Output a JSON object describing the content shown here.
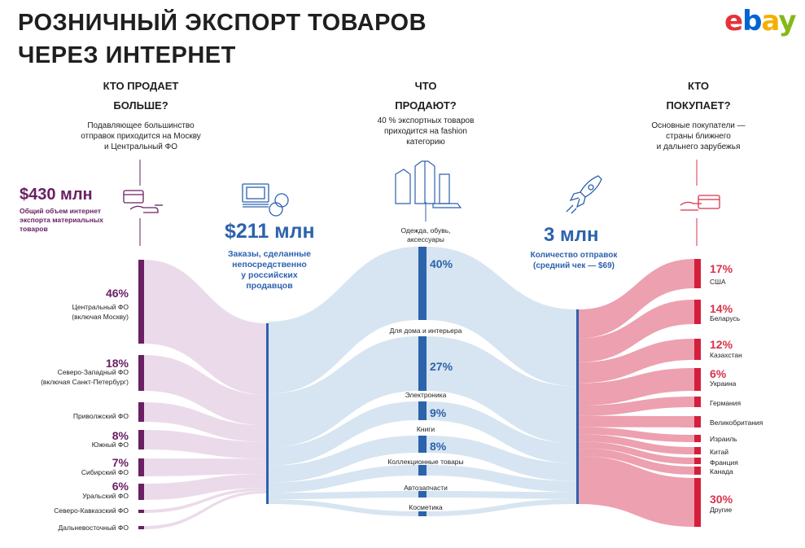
{
  "title": {
    "line1": "РОЗНИЧНЫЙ ЭКСПОРТ ТОВАРОВ",
    "line2": "ЧЕРЕЗ ИНТЕРНЕТ"
  },
  "logo": {
    "letters": [
      "e",
      "b",
      "a",
      "y"
    ],
    "colors": [
      "#e53238",
      "#0064d2",
      "#f5af02",
      "#86b817"
    ]
  },
  "colors": {
    "purple": "#6a2063",
    "blue": "#2d62ad",
    "red": "#d8334a",
    "flow_left": "#e8d5e6",
    "flow_mid": "#cfe0ef",
    "flow_right": "#ea8fa1"
  },
  "sellers": {
    "question_line1": "КТО ПРОДАЕТ",
    "question_line2": "БОЛЬШЕ?",
    "description": [
      "Подавляющее большинство",
      "отправок приходится на Москву",
      "и Центральный ФО"
    ],
    "total_value": "$430 млн",
    "total_caption": [
      "Общий объем интернет",
      "экспорта материальных",
      "товаров"
    ],
    "icon": "card-hand-icon"
  },
  "orders": {
    "value": "$211 млн",
    "caption": [
      "Заказы, сделанные",
      "непосредственно",
      "у российских",
      "продавцов"
    ],
    "icon": "money-coins-icon"
  },
  "what": {
    "question_line1": "ЧТО",
    "question_line2": "ПРОДАЮТ?",
    "description": [
      "40 % экспортных товаров",
      "приходится на fashion",
      "категорию"
    ],
    "icon": "clothes-icon"
  },
  "shipments": {
    "value": "3 млн",
    "caption": [
      "Количество отправок",
      "(средний чек — $69)"
    ],
    "icon": "rocket-icon"
  },
  "buyers": {
    "question_line1": "КТО",
    "question_line2": "ПОКУПАЕТ?",
    "description": [
      "Основные покупатели —",
      "страны ближнего",
      "и дальнего зарубежья"
    ],
    "icon": "card-hand-red-icon"
  },
  "chart_data": {
    "type": "sankey",
    "regions": [
      {
        "label": [
          "Центральный ФО",
          "(включая Москву)"
        ],
        "pct": "46%"
      },
      {
        "label": [
          "Северо-Западный ФО",
          "(включая Санкт-Петербург)"
        ],
        "pct": "18%"
      },
      {
        "label": [
          "Приволжский ФО"
        ],
        "pct": ""
      },
      {
        "label": [
          "Южный ФО"
        ],
        "pct": "8%"
      },
      {
        "label": [
          "Сибирский ФО"
        ],
        "pct": "7%"
      },
      {
        "label": [
          "Уральский ФО"
        ],
        "pct": "6%"
      },
      {
        "label": [
          "Северо-Кавказский ФО"
        ],
        "pct": ""
      },
      {
        "label": [
          "Дальневосточный ФО"
        ],
        "pct": ""
      }
    ],
    "categories": [
      {
        "label": [
          "Одежда, обувь,",
          "аксессуары"
        ],
        "pct": "40%"
      },
      {
        "label": [
          "Для дома и интерьера"
        ],
        "pct": "27%"
      },
      {
        "label": [
          "Электроника"
        ],
        "pct": "9%"
      },
      {
        "label": [
          "Книги"
        ],
        "pct": "8%"
      },
      {
        "label": [
          "Коллекционные товары"
        ],
        "pct": ""
      },
      {
        "label": [
          "Автозапчасти"
        ],
        "pct": ""
      },
      {
        "label": [
          "Косметика"
        ],
        "pct": ""
      }
    ],
    "countries": [
      {
        "label": "США",
        "pct": "17%"
      },
      {
        "label": "Беларусь",
        "pct": "14%"
      },
      {
        "label": "Казахстан",
        "pct": "12%"
      },
      {
        "label": "Украина",
        "pct": "6%"
      },
      {
        "label": "Германия",
        "pct": ""
      },
      {
        "label": "Великобритания",
        "pct": ""
      },
      {
        "label": "Израиль",
        "pct": ""
      },
      {
        "label": "Китай",
        "pct": ""
      },
      {
        "label": "Франция",
        "pct": ""
      },
      {
        "label": "Канада",
        "pct": ""
      },
      {
        "label": "Другие",
        "pct": "30%"
      }
    ]
  }
}
